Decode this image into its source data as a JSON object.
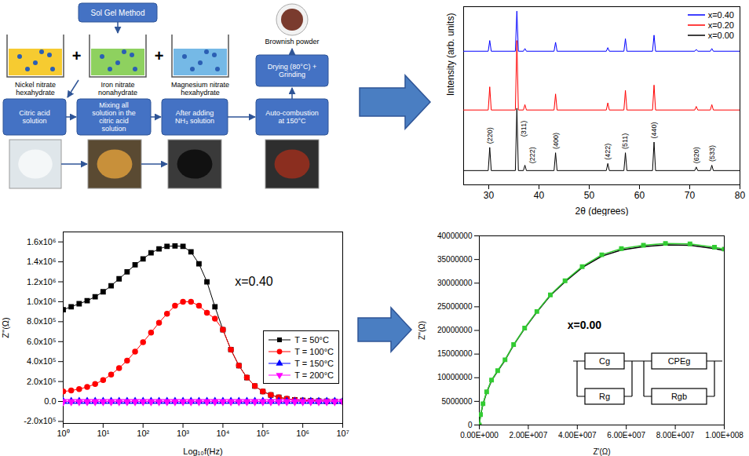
{
  "flowchart": {
    "method": "Sol Gel Method",
    "precursors": [
      "Nickel nitrate hexahydrate",
      "Iron nitrate nonahydrate",
      "Magnesium nitrate hexahydrate"
    ],
    "joiner": "+",
    "steps": [
      "Citric acid solution",
      "Mixing all solution in the citric acid solution",
      "After adding NH₃ solution",
      "Auto-combustion at 150°C",
      "Drying (80°C) + Grinding"
    ],
    "product": "Brownish powder"
  },
  "chart_data": [
    {
      "type": "line",
      "x_label": "2θ (degrees)",
      "y_label": "Intensity (arb. units)",
      "x": [
        25,
        29.9,
        30.2,
        30.5,
        35.3,
        35.6,
        35.9,
        36.9,
        37.2,
        37.5,
        43.0,
        43.3,
        43.6,
        53.4,
        53.7,
        54.0,
        56.9,
        57.2,
        57.5,
        62.6,
        62.9,
        63.2,
        71.0,
        71.3,
        71.6,
        74.1,
        74.4,
        74.7,
        80
      ],
      "series": [
        {
          "name": "x=0.40",
          "color": "#0000ff",
          "values": [
            75,
            75,
            81,
            75,
            75,
            97.5,
            75,
            75,
            76.5,
            75,
            75,
            80,
            75,
            75,
            77,
            75,
            75,
            82,
            75,
            75,
            84,
            75,
            75,
            76,
            75,
            75,
            76.5,
            75,
            75
          ]
        },
        {
          "name": "x=0.20",
          "color": "#ff0000",
          "values": [
            42,
            42,
            55,
            42,
            42,
            81,
            42,
            42,
            45,
            42,
            42,
            51,
            42,
            42,
            46,
            42,
            42,
            53,
            42,
            42,
            56,
            42,
            42,
            44,
            42,
            42,
            45,
            42,
            42
          ]
        },
        {
          "name": "x=0.00",
          "color": "#000000",
          "values": [
            8,
            8,
            21,
            8,
            8,
            43,
            8,
            8,
            11,
            8,
            8,
            18,
            8,
            8,
            12,
            8,
            8,
            18,
            8,
            8,
            24,
            8,
            8,
            10,
            8,
            8,
            11,
            8,
            8
          ]
        }
      ],
      "xlim": [
        25,
        80
      ],
      "xticks": [
        30,
        40,
        50,
        60,
        70,
        80
      ],
      "ylim": [
        0,
        100
      ],
      "tick_labels": "x",
      "legend": "top-right",
      "annotations": [
        {
          "text": "(220)",
          "x": 30.2,
          "y": 23
        },
        {
          "text": "(311)",
          "x": 36.9,
          "y": 27
        },
        {
          "text": "(222)",
          "x": 38.7,
          "y": 12
        },
        {
          "text": "(400)",
          "x": 43.3,
          "y": 20
        },
        {
          "text": "(422)",
          "x": 53.7,
          "y": 14
        },
        {
          "text": "(511)",
          "x": 57.2,
          "y": 20
        },
        {
          "text": "(440)",
          "x": 62.9,
          "y": 26
        },
        {
          "text": "(620)",
          "x": 71.3,
          "y": 12
        },
        {
          "text": "(533)",
          "x": 74.4,
          "y": 13
        }
      ]
    },
    {
      "type": "line",
      "x_label": "Log₁₀f(Hz)",
      "y_label": "Z''(Ω)",
      "log": "x",
      "x": [
        1,
        1.585,
        2.512,
        3.981,
        6.31,
        10,
        15.85,
        25.12,
        39.81,
        63.1,
        100,
        158.5,
        251.2,
        398.1,
        631,
        1000,
        1585,
        2512,
        3981,
        6310,
        10000,
        15850,
        25120,
        39810,
        63100,
        100000,
        158500,
        251200,
        398100,
        631000,
        1000000,
        1585000,
        2512000,
        3981000,
        6310000,
        10000000
      ],
      "series": [
        {
          "name": "T = 50°C",
          "color": "#000000",
          "marker": "square",
          "values": [
            920000,
            950000,
            980000,
            1010000,
            1050000,
            1100000,
            1160000,
            1230000,
            1300000,
            1370000,
            1430000,
            1490000,
            1530000,
            1555000,
            1560000,
            1555000,
            1500000,
            1380000,
            1200000,
            950000,
            720000,
            520000,
            360000,
            240000,
            155000,
            100000,
            65000,
            42000,
            27000,
            17000,
            11000,
            7000,
            4000,
            2500,
            1500,
            1000
          ]
        },
        {
          "name": "T = 100°C",
          "color": "#ff0000",
          "marker": "circle",
          "values": [
            100000,
            110000,
            125000,
            145000,
            175000,
            215000,
            270000,
            335000,
            410000,
            500000,
            595000,
            690000,
            790000,
            880000,
            960000,
            1000000,
            1000000,
            960000,
            890000,
            830000,
            720000,
            520000,
            360000,
            240000,
            155000,
            100000,
            65000,
            42000,
            27000,
            17000,
            11000,
            7000,
            4000,
            2500,
            1500,
            1000
          ]
        },
        {
          "name": "T = 150°C",
          "color": "#0000ff",
          "marker": "triangle",
          "values": [
            0,
            0,
            0,
            0,
            0,
            0,
            0,
            0,
            0,
            0,
            0,
            0,
            0,
            0,
            0,
            0,
            0,
            0,
            0,
            0,
            0,
            0,
            0,
            0,
            0,
            0,
            0,
            0,
            0,
            0,
            0,
            0,
            0,
            0,
            0,
            0
          ]
        },
        {
          "name": "T = 200°C",
          "color": "#ff00ff",
          "marker": "triangle-down",
          "values": [
            0,
            0,
            0,
            0,
            0,
            0,
            0,
            0,
            0,
            0,
            0,
            0,
            0,
            0,
            0,
            0,
            0,
            0,
            0,
            0,
            0,
            0,
            0,
            0,
            0,
            0,
            0,
            0,
            0,
            0,
            0,
            0,
            0,
            0,
            0,
            0
          ]
        }
      ],
      "xlim": [
        1,
        10000000
      ],
      "xticks": [
        {
          "value": 1,
          "label": "10⁰"
        },
        {
          "value": 10,
          "label": "10¹"
        },
        {
          "value": 100,
          "label": "10²"
        },
        {
          "value": 1000,
          "label": "10³"
        },
        {
          "value": 10000,
          "label": "10⁴"
        },
        {
          "value": 100000,
          "label": "10⁵"
        },
        {
          "value": 1000000,
          "label": "10⁶"
        },
        {
          "value": 10000000,
          "label": "10⁷"
        }
      ],
      "ylim": [
        -220000,
        1700000
      ],
      "yticks": [
        {
          "value": -200000,
          "label": "-2.0x10⁵"
        },
        {
          "value": 0,
          "label": "0.0"
        },
        {
          "value": 200000,
          "label": "2.0x10⁵"
        },
        {
          "value": 400000,
          "label": "4.0x10⁵"
        },
        {
          "value": 600000,
          "label": "6.0x10⁵"
        },
        {
          "value": 800000,
          "label": "8.0x10⁵"
        },
        {
          "value": 1000000,
          "label": "1.0x10⁶"
        },
        {
          "value": 1200000,
          "label": "1.2x10⁶"
        },
        {
          "value": 1400000,
          "label": "1.4x10⁶"
        },
        {
          "value": 1600000,
          "label": "1.6x10⁶"
        }
      ],
      "legend": "right",
      "annotations": [
        {
          "text": "x=0.40",
          "x": 20000,
          "y": 1200000
        }
      ]
    },
    {
      "type": "line",
      "x_label": "Z'(Ω)",
      "y_label": "Z''(Ω)",
      "x": [
        0,
        500000,
        1500000,
        3000000,
        5000000,
        7500000,
        10500000,
        14000000,
        18500000,
        23500000,
        29000000,
        35000000,
        42000000,
        50000000,
        58000000,
        67000000,
        76000000,
        86000000,
        96000000,
        100000000
      ],
      "series": [
        {
          "color": "#000000",
          "values": [
            0,
            2100000,
            4400000,
            6900000,
            9400000,
            11400000,
            13700000,
            16900000,
            20400000,
            23900000,
            27400000,
            30300000,
            33300000,
            35700000,
            37000000,
            37700000,
            38100000,
            38000000,
            37300000,
            36900000
          ]
        },
        {
          "color": "#33cc33",
          "marker": "square",
          "values": [
            0,
            2200000,
            4500000,
            7000000,
            9500000,
            11500000,
            13800000,
            17000000,
            20500000,
            24000000,
            27500000,
            30500000,
            33500000,
            36000000,
            37300000,
            38000000,
            38400000,
            38300000,
            37600000,
            37200000
          ]
        }
      ],
      "xlim": [
        0,
        100000000
      ],
      "xticks": [
        {
          "value": 0,
          "label": "0.00E+000"
        },
        {
          "value": 20000000,
          "label": "2.00E+007"
        },
        {
          "value": 40000000,
          "label": "4.00E+007"
        },
        {
          "value": 60000000,
          "label": "6.00E+007"
        },
        {
          "value": 80000000,
          "label": "8.00E+007"
        },
        {
          "value": 100000000,
          "label": "1.00E+008"
        }
      ],
      "ylim": [
        0,
        40000000
      ],
      "yticks": [
        0,
        5000000,
        10000000,
        15000000,
        20000000,
        25000000,
        30000000,
        35000000,
        40000000
      ],
      "annotations": [
        {
          "text": "x=0.00",
          "x": 36000000,
          "y": 21000000
        }
      ],
      "circuit_elements": [
        "Cg",
        "Rg",
        "CPEg",
        "Rgb"
      ]
    }
  ]
}
